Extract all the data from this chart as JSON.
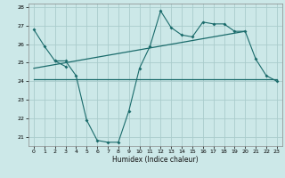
{
  "title": "",
  "xlabel": "Humidex (Indice chaleur)",
  "bg_color": "#cce8e8",
  "grid_color": "#aacccc",
  "line_color": "#1a6b6b",
  "x_values": [
    0,
    1,
    2,
    3,
    4,
    5,
    6,
    7,
    8,
    9,
    10,
    11,
    12,
    13,
    14,
    15,
    16,
    17,
    18,
    19,
    20,
    21,
    22,
    23
  ],
  "series1": [
    26.8,
    25.9,
    25.1,
    24.8,
    null,
    null,
    null,
    null,
    null,
    null,
    null,
    null,
    null,
    null,
    null,
    null,
    null,
    null,
    null,
    null,
    null,
    null,
    null,
    null
  ],
  "series2": [
    null,
    null,
    25.1,
    25.1,
    24.3,
    21.9,
    20.8,
    20.7,
    20.7,
    22.4,
    24.7,
    25.9,
    27.8,
    26.9,
    26.5,
    26.4,
    27.2,
    27.1,
    27.1,
    26.7,
    26.7,
    25.2,
    24.3,
    24.0
  ],
  "horiz_line_x": [
    0,
    23
  ],
  "horiz_line_y": [
    24.1,
    24.1
  ],
  "diag_line_x": [
    0,
    20
  ],
  "diag_line_y": [
    24.7,
    26.7
  ],
  "ylim": [
    20.5,
    28.2
  ],
  "xlim": [
    -0.5,
    23.5
  ],
  "yticks": [
    21,
    22,
    23,
    24,
    25,
    26,
    27,
    28
  ],
  "xticks": [
    0,
    1,
    2,
    3,
    4,
    5,
    6,
    7,
    8,
    9,
    10,
    11,
    12,
    13,
    14,
    15,
    16,
    17,
    18,
    19,
    20,
    21,
    22,
    23
  ]
}
